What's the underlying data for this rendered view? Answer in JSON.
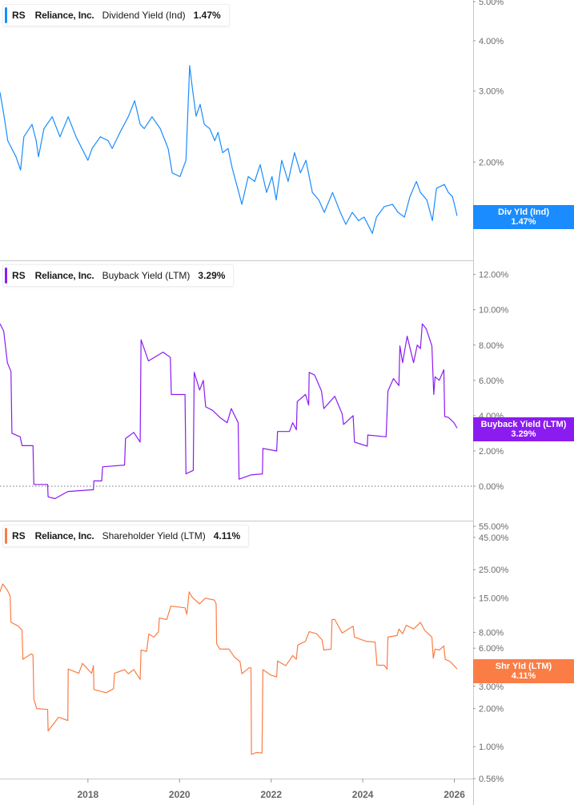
{
  "chart_data": [
    {
      "type": "line",
      "scale": "log",
      "ylim": [
        1.14,
        5.05
      ],
      "color": "#1a8cff",
      "legend": {
        "ticker": "RS",
        "company": "Reliance, Inc.",
        "metric": "Dividend Yield (Ind)",
        "value": "1.47%"
      },
      "badge": {
        "label": "Div Yld (Ind)",
        "value": "1.47%"
      },
      "yticks": [
        {
          "v": 5,
          "label": "5.00%"
        },
        {
          "v": 4,
          "label": "4.00%"
        },
        {
          "v": 3,
          "label": "3.00%"
        },
        {
          "v": 2,
          "label": "2.00%"
        }
      ],
      "points": [
        [
          2016.08,
          2.98
        ],
        [
          2016.17,
          2.6
        ],
        [
          2016.25,
          2.26
        ],
        [
          2016.43,
          2.06
        ],
        [
          2016.53,
          1.91
        ],
        [
          2016.6,
          2.31
        ],
        [
          2016.78,
          2.48
        ],
        [
          2016.87,
          2.26
        ],
        [
          2016.92,
          2.06
        ],
        [
          2017.04,
          2.42
        ],
        [
          2017.22,
          2.59
        ],
        [
          2017.39,
          2.31
        ],
        [
          2017.57,
          2.59
        ],
        [
          2017.74,
          2.31
        ],
        [
          2018.0,
          2.02
        ],
        [
          2018.09,
          2.16
        ],
        [
          2018.27,
          2.31
        ],
        [
          2018.44,
          2.26
        ],
        [
          2018.53,
          2.16
        ],
        [
          2018.7,
          2.37
        ],
        [
          2018.88,
          2.59
        ],
        [
          2019.02,
          2.84
        ],
        [
          2019.14,
          2.48
        ],
        [
          2019.23,
          2.42
        ],
        [
          2019.4,
          2.59
        ],
        [
          2019.58,
          2.42
        ],
        [
          2019.75,
          2.16
        ],
        [
          2019.84,
          1.88
        ],
        [
          2020.01,
          1.84
        ],
        [
          2020.14,
          2.02
        ],
        [
          2020.22,
          3.47
        ],
        [
          2020.28,
          3.05
        ],
        [
          2020.36,
          2.6
        ],
        [
          2020.45,
          2.78
        ],
        [
          2020.54,
          2.48
        ],
        [
          2020.66,
          2.42
        ],
        [
          2020.77,
          2.26
        ],
        [
          2020.84,
          2.37
        ],
        [
          2020.94,
          2.11
        ],
        [
          2021.06,
          2.16
        ],
        [
          2021.15,
          1.93
        ],
        [
          2021.27,
          1.72
        ],
        [
          2021.36,
          1.57
        ],
        [
          2021.5,
          1.84
        ],
        [
          2021.64,
          1.79
        ],
        [
          2021.76,
          1.97
        ],
        [
          2021.9,
          1.68
        ],
        [
          2022.02,
          1.84
        ],
        [
          2022.11,
          1.61
        ],
        [
          2022.23,
          2.02
        ],
        [
          2022.37,
          1.79
        ],
        [
          2022.51,
          2.11
        ],
        [
          2022.64,
          1.88
        ],
        [
          2022.76,
          2.02
        ],
        [
          2022.9,
          1.68
        ],
        [
          2023.04,
          1.61
        ],
        [
          2023.16,
          1.5
        ],
        [
          2023.34,
          1.68
        ],
        [
          2023.51,
          1.5
        ],
        [
          2023.63,
          1.4
        ],
        [
          2023.77,
          1.5
        ],
        [
          2023.91,
          1.43
        ],
        [
          2024.03,
          1.46
        ],
        [
          2024.21,
          1.33
        ],
        [
          2024.3,
          1.46
        ],
        [
          2024.47,
          1.55
        ],
        [
          2024.65,
          1.57
        ],
        [
          2024.77,
          1.5
        ],
        [
          2024.91,
          1.46
        ],
        [
          2025.03,
          1.64
        ],
        [
          2025.17,
          1.79
        ],
        [
          2025.26,
          1.68
        ],
        [
          2025.4,
          1.61
        ],
        [
          2025.52,
          1.43
        ],
        [
          2025.61,
          1.72
        ],
        [
          2025.78,
          1.76
        ],
        [
          2025.87,
          1.68
        ],
        [
          2025.96,
          1.64
        ],
        [
          2026.06,
          1.47
        ]
      ]
    },
    {
      "type": "line",
      "scale": "linear",
      "ylim": [
        -1.95,
        12.8
      ],
      "color": "#8b1cf0",
      "zero_line": true,
      "legend": {
        "ticker": "RS",
        "company": "Reliance, Inc.",
        "metric": "Buyback Yield (LTM)",
        "value": "3.29%"
      },
      "badge": {
        "label": "Buyback Yield (LTM)",
        "value": "3.29%"
      },
      "yticks": [
        {
          "v": 12,
          "label": "12.00%"
        },
        {
          "v": 10,
          "label": "10.00%"
        },
        {
          "v": 8,
          "label": "8.00%"
        },
        {
          "v": 6,
          "label": "6.00%"
        },
        {
          "v": 4,
          "label": "4.00%"
        },
        {
          "v": 2,
          "label": "2.00%"
        },
        {
          "v": 0,
          "label": "0.00%"
        }
      ],
      "points": [
        [
          2016.08,
          9.2
        ],
        [
          2016.16,
          8.8
        ],
        [
          2016.24,
          7.0
        ],
        [
          2016.32,
          6.5
        ],
        [
          2016.34,
          3.0
        ],
        [
          2016.52,
          2.8
        ],
        [
          2016.56,
          2.3
        ],
        [
          2016.8,
          2.3
        ],
        [
          2016.82,
          0.1
        ],
        [
          2017.12,
          0.1
        ],
        [
          2017.13,
          -0.6
        ],
        [
          2017.28,
          -0.7
        ],
        [
          2017.56,
          -0.3
        ],
        [
          2018.12,
          -0.2
        ],
        [
          2018.13,
          0.3
        ],
        [
          2018.3,
          0.3
        ],
        [
          2018.32,
          1.1
        ],
        [
          2018.8,
          1.2
        ],
        [
          2018.82,
          2.7
        ],
        [
          2019.0,
          3.05
        ],
        [
          2019.14,
          2.5
        ],
        [
          2019.16,
          8.3
        ],
        [
          2019.32,
          7.1
        ],
        [
          2019.64,
          7.6
        ],
        [
          2019.8,
          7.3
        ],
        [
          2019.82,
          5.2
        ],
        [
          2020.12,
          5.2
        ],
        [
          2020.14,
          0.7
        ],
        [
          2020.3,
          0.9
        ],
        [
          2020.32,
          6.45
        ],
        [
          2020.44,
          5.45
        ],
        [
          2020.52,
          6.0
        ],
        [
          2020.57,
          4.5
        ],
        [
          2020.72,
          4.3
        ],
        [
          2020.88,
          3.9
        ],
        [
          2021.04,
          3.6
        ],
        [
          2021.13,
          4.4
        ],
        [
          2021.28,
          3.6
        ],
        [
          2021.3,
          0.4
        ],
        [
          2021.56,
          0.64
        ],
        [
          2021.81,
          0.7
        ],
        [
          2021.82,
          2.14
        ],
        [
          2022.12,
          2.0
        ],
        [
          2022.14,
          3.1
        ],
        [
          2022.4,
          3.1
        ],
        [
          2022.47,
          3.6
        ],
        [
          2022.55,
          3.2
        ],
        [
          2022.57,
          4.8
        ],
        [
          2022.75,
          5.2
        ],
        [
          2022.82,
          4.6
        ],
        [
          2022.83,
          6.45
        ],
        [
          2022.95,
          6.3
        ],
        [
          2023.1,
          5.4
        ],
        [
          2023.15,
          4.4
        ],
        [
          2023.39,
          5.1
        ],
        [
          2023.55,
          4.1
        ],
        [
          2023.58,
          3.5
        ],
        [
          2023.79,
          4.0
        ],
        [
          2023.82,
          2.5
        ],
        [
          2024.1,
          2.27
        ],
        [
          2024.11,
          2.9
        ],
        [
          2024.51,
          2.8
        ],
        [
          2024.55,
          5.4
        ],
        [
          2024.67,
          6.1
        ],
        [
          2024.79,
          5.7
        ],
        [
          2024.81,
          7.95
        ],
        [
          2024.87,
          7.0
        ],
        [
          2024.97,
          8.5
        ],
        [
          2025.11,
          7.0
        ],
        [
          2025.19,
          8.0
        ],
        [
          2025.26,
          7.8
        ],
        [
          2025.3,
          9.2
        ],
        [
          2025.39,
          8.9
        ],
        [
          2025.51,
          7.95
        ],
        [
          2025.55,
          5.2
        ],
        [
          2025.58,
          6.2
        ],
        [
          2025.67,
          6.0
        ],
        [
          2025.77,
          6.6
        ],
        [
          2025.79,
          3.95
        ],
        [
          2025.87,
          3.9
        ],
        [
          2025.99,
          3.6
        ],
        [
          2026.06,
          3.29
        ]
      ]
    },
    {
      "type": "line",
      "scale": "log",
      "ylim": [
        0.56,
        61
      ],
      "color": "#fa7d46",
      "legend": {
        "ticker": "RS",
        "company": "Reliance, Inc.",
        "metric": "Shareholder Yield (LTM)",
        "value": "4.11%"
      },
      "badge": {
        "label": "Shr Yld (LTM)",
        "value": "4.11%"
      },
      "yticks": [
        {
          "v": 55,
          "label": "55.00%"
        },
        {
          "v": 45,
          "label": "45.00%"
        },
        {
          "v": 25,
          "label": "25.00%"
        },
        {
          "v": 15,
          "label": "15.00%"
        },
        {
          "v": 8,
          "label": "8.00%"
        },
        {
          "v": 6,
          "label": "6.00%"
        },
        {
          "v": 3,
          "label": "3.00%"
        },
        {
          "v": 2,
          "label": "2.00%"
        },
        {
          "v": 1,
          "label": "1.00%"
        },
        {
          "v": 0.56,
          "label": "0.56%"
        }
      ],
      "points": [
        [
          2016.08,
          16.7
        ],
        [
          2016.14,
          19.3
        ],
        [
          2016.24,
          17.2
        ],
        [
          2016.3,
          15.5
        ],
        [
          2016.32,
          9.6
        ],
        [
          2016.48,
          8.95
        ],
        [
          2016.56,
          8.3
        ],
        [
          2016.58,
          4.9
        ],
        [
          2016.76,
          5.4
        ],
        [
          2016.8,
          5.3
        ],
        [
          2016.82,
          2.38
        ],
        [
          2016.88,
          2.0
        ],
        [
          2017.12,
          1.97
        ],
        [
          2017.13,
          1.33
        ],
        [
          2017.36,
          1.71
        ],
        [
          2017.56,
          1.61
        ],
        [
          2017.57,
          4.1
        ],
        [
          2017.8,
          3.8
        ],
        [
          2017.88,
          4.55
        ],
        [
          2018.08,
          3.8
        ],
        [
          2018.12,
          4.36
        ],
        [
          2018.13,
          2.83
        ],
        [
          2018.4,
          2.67
        ],
        [
          2018.56,
          2.87
        ],
        [
          2018.58,
          3.8
        ],
        [
          2018.8,
          4.06
        ],
        [
          2018.88,
          3.77
        ],
        [
          2019.0,
          4.06
        ],
        [
          2019.14,
          3.4
        ],
        [
          2019.16,
          5.8
        ],
        [
          2019.28,
          5.65
        ],
        [
          2019.33,
          7.76
        ],
        [
          2019.44,
          7.34
        ],
        [
          2019.54,
          8.1
        ],
        [
          2019.56,
          10.4
        ],
        [
          2019.72,
          10.1
        ],
        [
          2019.81,
          12.9
        ],
        [
          2020.12,
          12.5
        ],
        [
          2020.16,
          11.1
        ],
        [
          2020.21,
          16.7
        ],
        [
          2020.28,
          15.1
        ],
        [
          2020.44,
          13.4
        ],
        [
          2020.56,
          14.9
        ],
        [
          2020.76,
          14.4
        ],
        [
          2020.8,
          13.4
        ],
        [
          2020.81,
          6.5
        ],
        [
          2020.88,
          5.9
        ],
        [
          2021.08,
          5.9
        ],
        [
          2021.2,
          5.1
        ],
        [
          2021.32,
          4.7
        ],
        [
          2021.36,
          3.77
        ],
        [
          2021.52,
          4.2
        ],
        [
          2021.56,
          4.2
        ],
        [
          2021.57,
          0.87
        ],
        [
          2021.68,
          0.9
        ],
        [
          2021.8,
          0.89
        ],
        [
          2021.82,
          4.06
        ],
        [
          2022.0,
          3.66
        ],
        [
          2022.12,
          3.56
        ],
        [
          2022.14,
          4.75
        ],
        [
          2022.32,
          4.36
        ],
        [
          2022.47,
          5.25
        ],
        [
          2022.55,
          4.9
        ],
        [
          2022.58,
          6.35
        ],
        [
          2022.75,
          6.8
        ],
        [
          2022.83,
          8.1
        ],
        [
          2022.99,
          7.8
        ],
        [
          2023.11,
          7.0
        ],
        [
          2023.15,
          5.8
        ],
        [
          2023.31,
          5.9
        ],
        [
          2023.33,
          10.1
        ],
        [
          2023.39,
          10.1
        ],
        [
          2023.55,
          7.9
        ],
        [
          2023.79,
          8.95
        ],
        [
          2023.82,
          7.34
        ],
        [
          2024.07,
          6.8
        ],
        [
          2024.27,
          6.7
        ],
        [
          2024.31,
          4.4
        ],
        [
          2024.47,
          4.4
        ],
        [
          2024.53,
          4.1
        ],
        [
          2024.55,
          7.34
        ],
        [
          2024.75,
          7.55
        ],
        [
          2024.79,
          8.5
        ],
        [
          2024.87,
          7.8
        ],
        [
          2024.95,
          9.1
        ],
        [
          2025.11,
          8.5
        ],
        [
          2025.26,
          9.6
        ],
        [
          2025.35,
          8.3
        ],
        [
          2025.51,
          7.34
        ],
        [
          2025.54,
          5.0
        ],
        [
          2025.58,
          5.9
        ],
        [
          2025.67,
          5.8
        ],
        [
          2025.77,
          6.25
        ],
        [
          2025.8,
          4.9
        ],
        [
          2025.91,
          4.7
        ],
        [
          2026.06,
          4.11
        ]
      ]
    }
  ],
  "x_axis": {
    "xlim": [
      2016.08,
      2026.41
    ],
    "ticks": [
      {
        "v": 2018,
        "label": "2018"
      },
      {
        "v": 2020,
        "label": "2020"
      },
      {
        "v": 2022,
        "label": "2022"
      },
      {
        "v": 2024,
        "label": "2024"
      },
      {
        "v": 2026,
        "label": "2026"
      }
    ]
  }
}
